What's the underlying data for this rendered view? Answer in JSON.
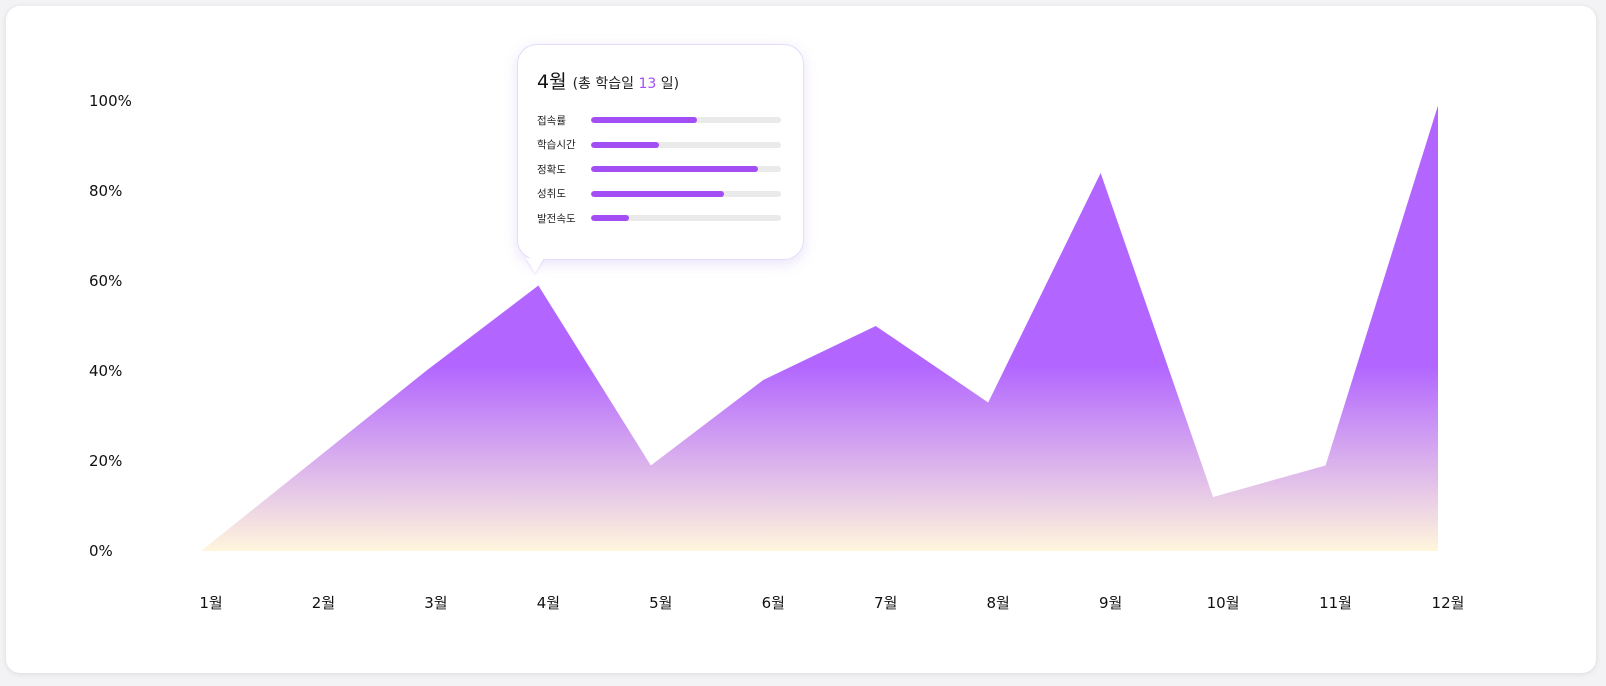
{
  "chart_data": {
    "type": "area",
    "title": "",
    "xlabel": "",
    "ylabel": "",
    "categories": [
      "1월",
      "2월",
      "3월",
      "4월",
      "5월",
      "6월",
      "7월",
      "8월",
      "9월",
      "10월",
      "11월",
      "12월"
    ],
    "values": [
      0,
      20,
      40,
      59,
      19,
      38,
      50,
      33,
      84,
      12,
      19,
      99
    ],
    "y_ticks": [
      "0%",
      "20%",
      "40%",
      "60%",
      "80%",
      "100%"
    ],
    "ylim": [
      0,
      100
    ],
    "grid": false,
    "fill_colors": {
      "top": "#b266ff",
      "bottom": "#fff6dc"
    }
  },
  "tooltip": {
    "month": "4월",
    "subtitle_prefix": "(총 학습일",
    "days": "13",
    "subtitle_suffix": "일)",
    "metrics": [
      {
        "label": "접속률",
        "value": 0.56
      },
      {
        "label": "학습시간",
        "value": 0.36
      },
      {
        "label": "정확도",
        "value": 0.88
      },
      {
        "label": "성취도",
        "value": 0.7
      },
      {
        "label": "발전속도",
        "value": 0.2
      }
    ]
  }
}
